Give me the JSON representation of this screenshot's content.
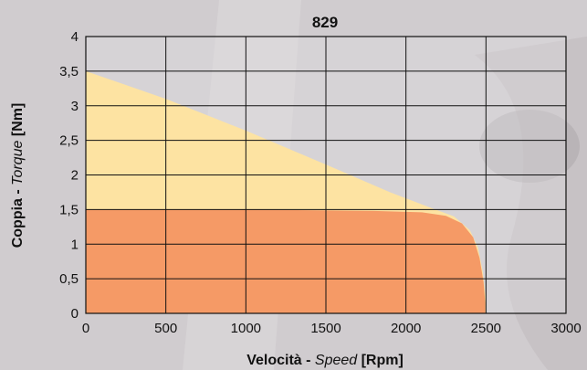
{
  "chart_data": {
    "type": "area",
    "title": "829",
    "xlabel": {
      "bold1": "Velocità - ",
      "italic": "Speed",
      "bold2": " [Rpm]"
    },
    "ylabel": {
      "bold1": "Coppia - ",
      "italic": "Torque",
      "bold2": " [Nm]"
    },
    "xlim": [
      0,
      3000
    ],
    "ylim": [
      0,
      4
    ],
    "x_ticks": [
      "0",
      "500",
      "1000",
      "1500",
      "2000",
      "2500",
      "3000"
    ],
    "y_ticks": [
      "0",
      "0,5",
      "1",
      "1,5",
      "2",
      "2,5",
      "3",
      "3,5",
      "4"
    ],
    "grid": true,
    "series": [
      {
        "color": "#fde3a2",
        "points": [
          [
            0,
            3.5
          ],
          [
            500,
            3.1
          ],
          [
            1000,
            2.64
          ],
          [
            1500,
            2.15
          ],
          [
            1900,
            1.75
          ],
          [
            2150,
            1.53
          ],
          [
            2300,
            1.4
          ],
          [
            2400,
            1.2
          ],
          [
            2450,
            0.95
          ],
          [
            2480,
            0.6
          ],
          [
            2500,
            0.2
          ],
          [
            2500,
            0
          ]
        ]
      },
      {
        "color": "#f59a66",
        "points": [
          [
            0,
            1.5
          ],
          [
            1000,
            1.5
          ],
          [
            1800,
            1.48
          ],
          [
            2100,
            1.46
          ],
          [
            2250,
            1.41
          ],
          [
            2350,
            1.3
          ],
          [
            2420,
            1.1
          ],
          [
            2460,
            0.8
          ],
          [
            2485,
            0.45
          ],
          [
            2495,
            0.15
          ],
          [
            2495,
            0
          ]
        ]
      }
    ]
  }
}
